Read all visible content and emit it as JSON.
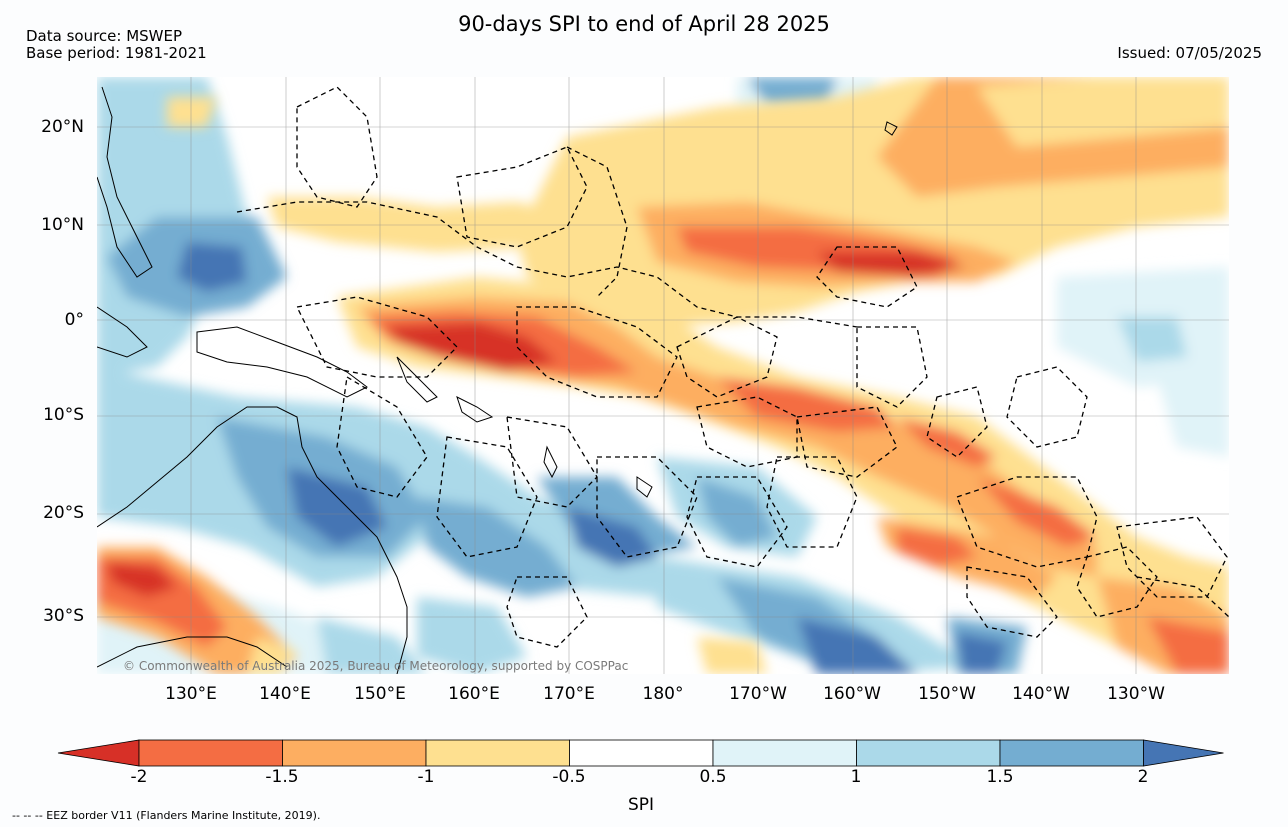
{
  "title": "90-days SPI to end of April 28 2025",
  "meta": {
    "source": "Data source: MSWEP",
    "base_period": "Base period: 1981-2021",
    "issued": "Issued: 07/05/2025"
  },
  "map": {
    "lat_labels": [
      "20°N",
      "10°N",
      "0°",
      "10°S",
      "20°S",
      "30°S"
    ],
    "lon_labels": [
      "130°E",
      "140°E",
      "150°E",
      "160°E",
      "170°E",
      "180°",
      "170°W",
      "160°W",
      "150°W",
      "140°W",
      "130°W"
    ],
    "copyright": "© Commonwealth of Australia 2025, Bureau of Meteorology, supported by COSPPac",
    "colors": {
      "very_dry": "#d73027",
      "dry_2": "#f46d43",
      "dry_1": "#fdae61",
      "dry_0": "#fee090",
      "normal": "#ffffff",
      "wet_0": "#e0f3f8",
      "wet_1": "#abd9e9",
      "wet_2": "#74add1",
      "very_wet": "#4575b4"
    }
  },
  "colorbar": {
    "label": "SPI",
    "ticks": [
      "-2",
      "-1.5",
      "-1",
      "-0.5",
      "0.5",
      "1",
      "1.5",
      "2"
    ],
    "colors": [
      "#d73027",
      "#f46d43",
      "#fdae61",
      "#fee090",
      "#ffffff",
      "#e0f3f8",
      "#abd9e9",
      "#74add1",
      "#4575b4"
    ]
  },
  "footnote": "-- -- -- EEZ border V11 (Flanders Marine Institute, 2019)."
}
